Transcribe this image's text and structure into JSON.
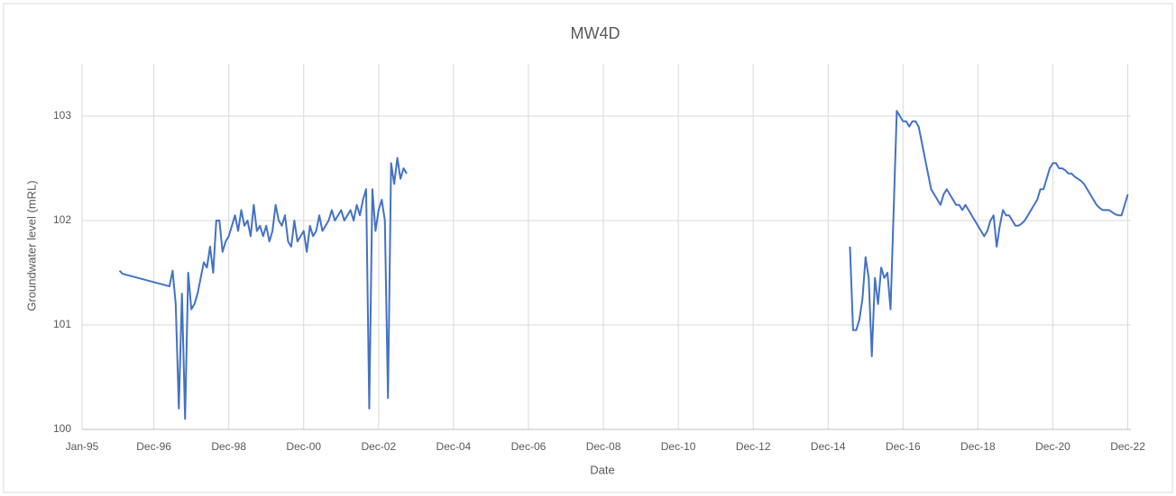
{
  "chart_data": {
    "type": "line",
    "title": "MW4D",
    "xlabel": "Date",
    "ylabel": "Groundwater level (mRL)",
    "color": "#4472c4",
    "grid": true,
    "xlim": [
      "1995-01",
      "2023-01"
    ],
    "xticks": [
      {
        "value": "1995-01",
        "label": "Jan-95"
      },
      {
        "value": "1996-12",
        "label": "Dec-96"
      },
      {
        "value": "1998-12",
        "label": "Dec-98"
      },
      {
        "value": "2000-12",
        "label": "Dec-00"
      },
      {
        "value": "2002-12",
        "label": "Dec-02"
      },
      {
        "value": "2004-12",
        "label": "Dec-04"
      },
      {
        "value": "2006-12",
        "label": "Dec-06"
      },
      {
        "value": "2008-12",
        "label": "Dec-08"
      },
      {
        "value": "2010-12",
        "label": "Dec-10"
      },
      {
        "value": "2012-12",
        "label": "Dec-12"
      },
      {
        "value": "2014-12",
        "label": "Dec-14"
      },
      {
        "value": "2016-12",
        "label": "Dec-16"
      },
      {
        "value": "2018-12",
        "label": "Dec-18"
      },
      {
        "value": "2020-12",
        "label": "Dec-20"
      },
      {
        "value": "2022-12",
        "label": "Dec-22"
      }
    ],
    "ylim": [
      100,
      103.5
    ],
    "yticks": [
      100,
      101,
      102,
      103
    ],
    "x": [
      "1996-01",
      "1996-02",
      "1997-05",
      "1997-06",
      "1997-07",
      "1997-08",
      "1997-09",
      "1997-10",
      "1997-11",
      "1997-12",
      "1998-01",
      "1998-02",
      "1998-03",
      "1998-04",
      "1998-05",
      "1998-06",
      "1998-07",
      "1998-08",
      "1998-09",
      "1998-10",
      "1998-11",
      "1998-12",
      "1999-01",
      "1999-02",
      "1999-03",
      "1999-04",
      "1999-05",
      "1999-06",
      "1999-07",
      "1999-08",
      "1999-09",
      "1999-10",
      "1999-11",
      "1999-12",
      "2000-01",
      "2000-02",
      "2000-03",
      "2000-04",
      "2000-05",
      "2000-06",
      "2000-07",
      "2000-08",
      "2000-09",
      "2000-10",
      "2000-11",
      "2000-12",
      "2001-01",
      "2001-02",
      "2001-03",
      "2001-04",
      "2001-05",
      "2001-06",
      "2001-07",
      "2001-08",
      "2001-09",
      "2001-10",
      "2001-11",
      "2001-12",
      "2002-01",
      "2002-02",
      "2002-03",
      "2002-04",
      "2002-05",
      "2002-06",
      "2002-07",
      "2002-08",
      "2002-09",
      "2002-10",
      "2002-11",
      "2002-12",
      "2003-01",
      "2003-02",
      "2003-03",
      "2003-04",
      "2003-05",
      "2003-06",
      "2003-07",
      "2003-08",
      "2003-09",
      "2009-06",
      "2015-07",
      "2015-08",
      "2015-09",
      "2015-10",
      "2015-11",
      "2015-12",
      "2016-01",
      "2016-02",
      "2016-03",
      "2016-04",
      "2016-05",
      "2016-06",
      "2016-07",
      "2016-08",
      "2016-09",
      "2016-10",
      "2016-11",
      "2016-12",
      "2017-01",
      "2017-02",
      "2017-03",
      "2017-04",
      "2017-05",
      "2017-06",
      "2017-07",
      "2017-08",
      "2017-09",
      "2017-10",
      "2017-11",
      "2017-12",
      "2018-01",
      "2018-02",
      "2018-03",
      "2018-04",
      "2018-05",
      "2018-06",
      "2018-07",
      "2018-08",
      "2018-09",
      "2018-10",
      "2018-11",
      "2018-12",
      "2019-01",
      "2019-02",
      "2019-03",
      "2019-04",
      "2019-05",
      "2019-06",
      "2019-07",
      "2019-08",
      "2019-09",
      "2019-10",
      "2019-11",
      "2019-12",
      "2020-01",
      "2020-02",
      "2020-03",
      "2020-04",
      "2020-05",
      "2020-06",
      "2020-07",
      "2020-08",
      "2020-09",
      "2020-10",
      "2020-11",
      "2020-12",
      "2021-01",
      "2021-02",
      "2021-03",
      "2021-04",
      "2021-05",
      "2021-06",
      "2021-07",
      "2021-08",
      "2021-09",
      "2021-10",
      "2021-11",
      "2021-12",
      "2022-01",
      "2022-02",
      "2022-03",
      "2022-04",
      "2022-05",
      "2022-06",
      "2022-07",
      "2022-08",
      "2022-09",
      "2022-10",
      "2022-11",
      "2022-12"
    ],
    "values": [
      101.52,
      101.49,
      101.37,
      101.52,
      101.2,
      100.2,
      101.3,
      100.1,
      101.5,
      101.15,
      101.2,
      101.3,
      101.45,
      101.6,
      101.55,
      101.75,
      101.5,
      102.0,
      102.0,
      101.7,
      101.8,
      101.85,
      101.95,
      102.05,
      101.9,
      102.1,
      101.95,
      102.0,
      101.85,
      102.15,
      101.9,
      101.95,
      101.85,
      101.95,
      101.8,
      101.9,
      102.15,
      102.0,
      101.95,
      102.05,
      101.8,
      101.75,
      102.0,
      101.8,
      101.85,
      101.9,
      101.7,
      101.95,
      101.85,
      101.9,
      102.05,
      101.9,
      101.95,
      102.0,
      102.1,
      102.0,
      102.05,
      102.1,
      102.0,
      102.05,
      102.1,
      102.0,
      102.15,
      102.05,
      102.2,
      102.3,
      100.2,
      102.3,
      101.9,
      102.1,
      102.2,
      102.0,
      100.3,
      102.55,
      102.35,
      102.6,
      102.4,
      102.5,
      102.45,
      null,
      101.75,
      100.95,
      100.95,
      101.05,
      101.25,
      101.65,
      101.45,
      100.7,
      101.45,
      101.2,
      101.55,
      101.45,
      101.5,
      101.15,
      102.1,
      103.05,
      103.0,
      102.95,
      102.95,
      102.9,
      102.95,
      102.95,
      102.9,
      102.75,
      102.6,
      102.45,
      102.3,
      102.25,
      102.2,
      102.15,
      102.25,
      102.3,
      102.25,
      102.2,
      102.15,
      102.15,
      102.1,
      102.15,
      102.1,
      102.05,
      102.0,
      101.95,
      101.9,
      101.85,
      101.9,
      102.0,
      102.05,
      101.75,
      101.95,
      102.1,
      102.05,
      102.05,
      102.0,
      101.95,
      101.95,
      101.97,
      102.0,
      102.05,
      102.1,
      102.15,
      102.2,
      102.3,
      102.3,
      102.4,
      102.5,
      102.55,
      102.55,
      102.5,
      102.5,
      102.48,
      102.45,
      102.45,
      102.42,
      102.4,
      102.38,
      102.35,
      102.3,
      102.25,
      102.2,
      102.15,
      102.12,
      102.1,
      102.1,
      102.1,
      102.08,
      102.06,
      102.05,
      102.05,
      102.15,
      102.25
    ]
  }
}
